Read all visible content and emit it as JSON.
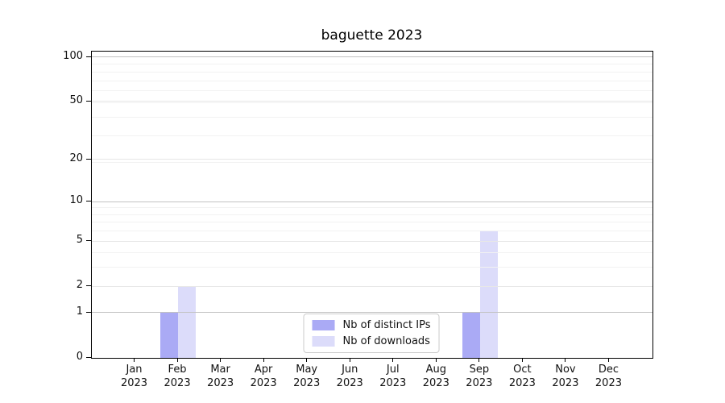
{
  "title": "baguette 2023",
  "chart_data": {
    "type": "bar",
    "title": "baguette 2023",
    "xlabel": "",
    "ylabel": "",
    "year": "2023",
    "categories": [
      "Jan",
      "Feb",
      "Mar",
      "Apr",
      "May",
      "Jun",
      "Jul",
      "Aug",
      "Sep",
      "Oct",
      "Nov",
      "Dec"
    ],
    "series": [
      {
        "name": "Nb of distinct IPs",
        "color": "#aaaaf5",
        "values": [
          0,
          1,
          0,
          0,
          0,
          0,
          0,
          0,
          1,
          0,
          0,
          0
        ]
      },
      {
        "name": "Nb of downloads",
        "color": "#dcdcfa",
        "values": [
          0,
          2,
          0,
          0,
          0,
          0,
          0,
          0,
          6,
          0,
          0,
          0
        ]
      }
    ],
    "yscale": "log1p",
    "ylim": [
      0,
      108
    ],
    "yticks": [
      0,
      1,
      2,
      5,
      10,
      20,
      50,
      100
    ],
    "emphasized_yticks": [
      1,
      10,
      100
    ],
    "minor_ytick_values": [
      3,
      4,
      6,
      7,
      8,
      9,
      19,
      29,
      39,
      49,
      59,
      69,
      79,
      89
    ],
    "grid": "horizontal-both",
    "legend_position": "lower center"
  },
  "colors": {
    "grid_major_emphasis": "#c2c2c2",
    "grid_major": "#e7e7e7",
    "grid_minor": "#f2f2f2",
    "spine": "#000000",
    "legend_border": "#cccccc",
    "background": "#ffffff"
  }
}
